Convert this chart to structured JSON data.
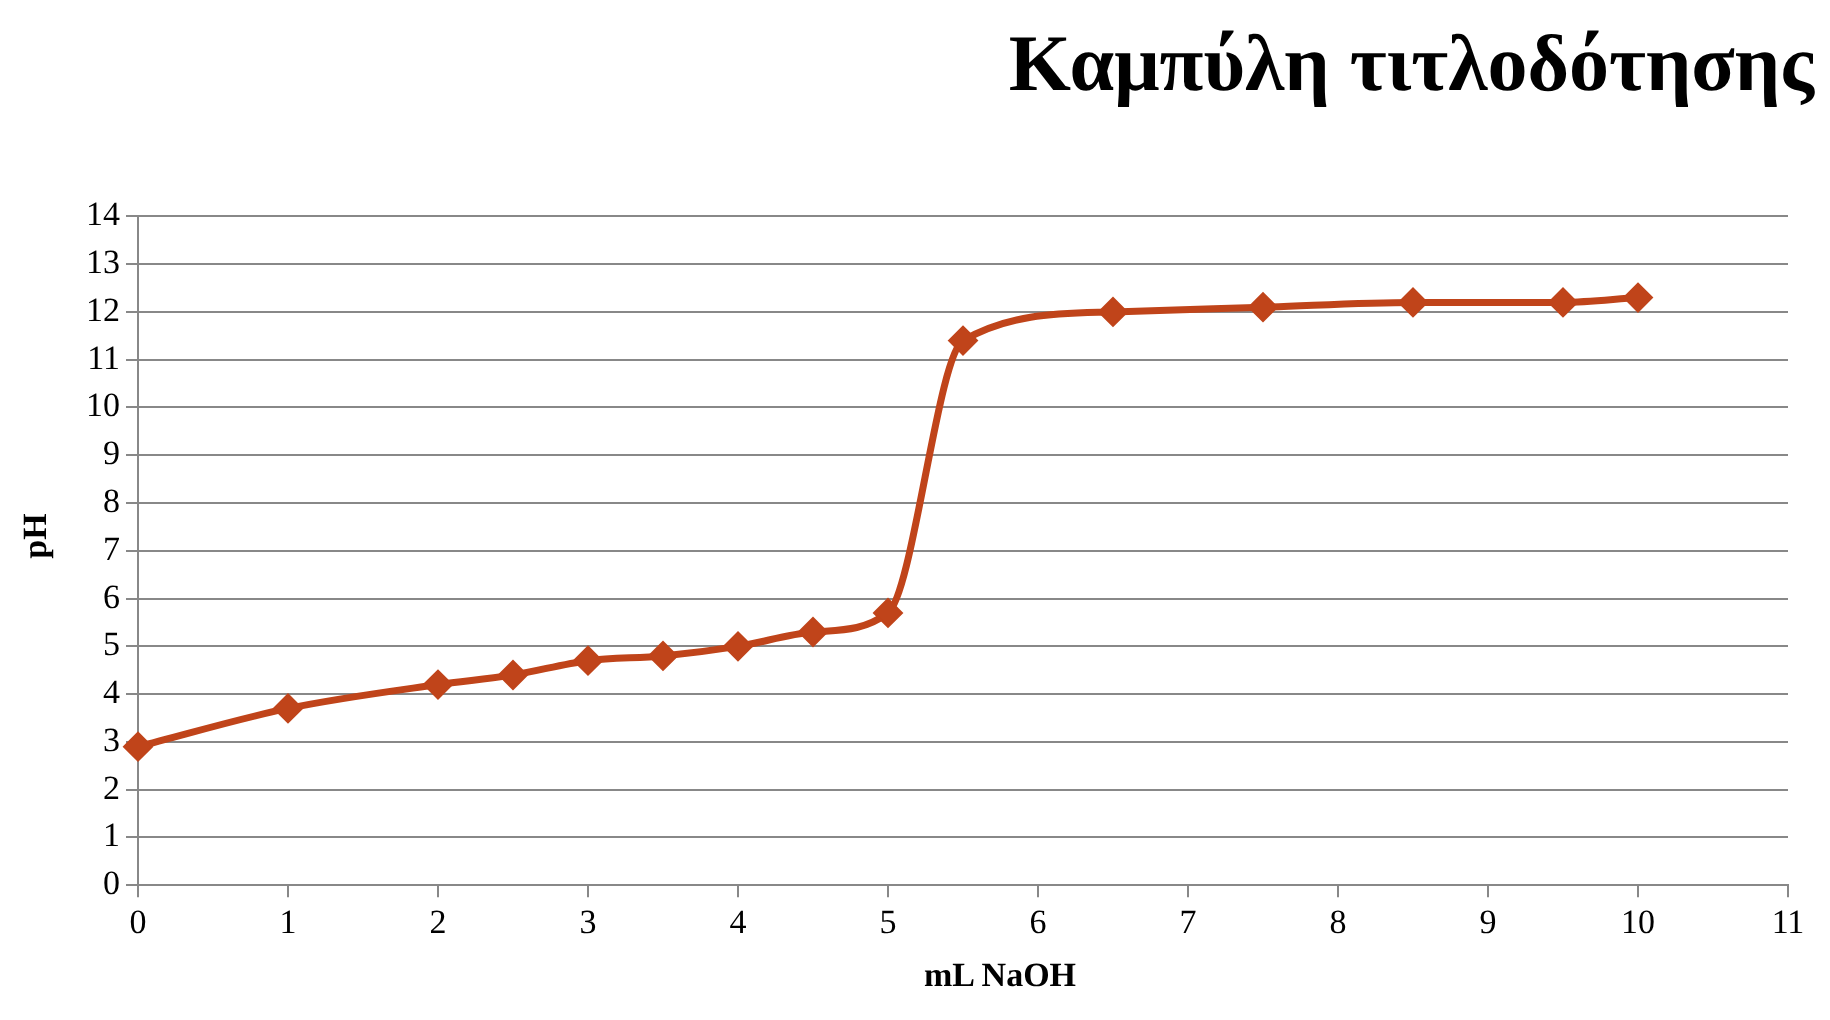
{
  "chart_data": {
    "type": "line",
    "title": "Καμπύλη τιτλοδότησης",
    "xlabel": "mL NaOH",
    "ylabel": "pH",
    "x": [
      0,
      1,
      2,
      2.5,
      3,
      3.5,
      4,
      4.5,
      5,
      5.5,
      6.5,
      7.5,
      8.5,
      9.5,
      10
    ],
    "series": [
      {
        "color": "#c0441a",
        "values": [
          2.9,
          3.7,
          4.2,
          4.4,
          4.7,
          4.8,
          5.0,
          5.3,
          5.7,
          11.4,
          12.0,
          12.1,
          12.2,
          12.2,
          12.3
        ]
      }
    ],
    "xlim": [
      0,
      11
    ],
    "xticks": [
      0,
      1,
      2,
      3,
      4,
      5,
      6,
      7,
      8,
      9,
      10,
      11
    ],
    "ylim": [
      0,
      14
    ],
    "yticks": [
      0,
      1,
      2,
      3,
      4,
      5,
      6,
      7,
      8,
      9,
      10,
      11,
      12,
      13,
      14
    ],
    "grid": "y",
    "legend": false,
    "marker": "diamond",
    "line_style": "solid"
  }
}
